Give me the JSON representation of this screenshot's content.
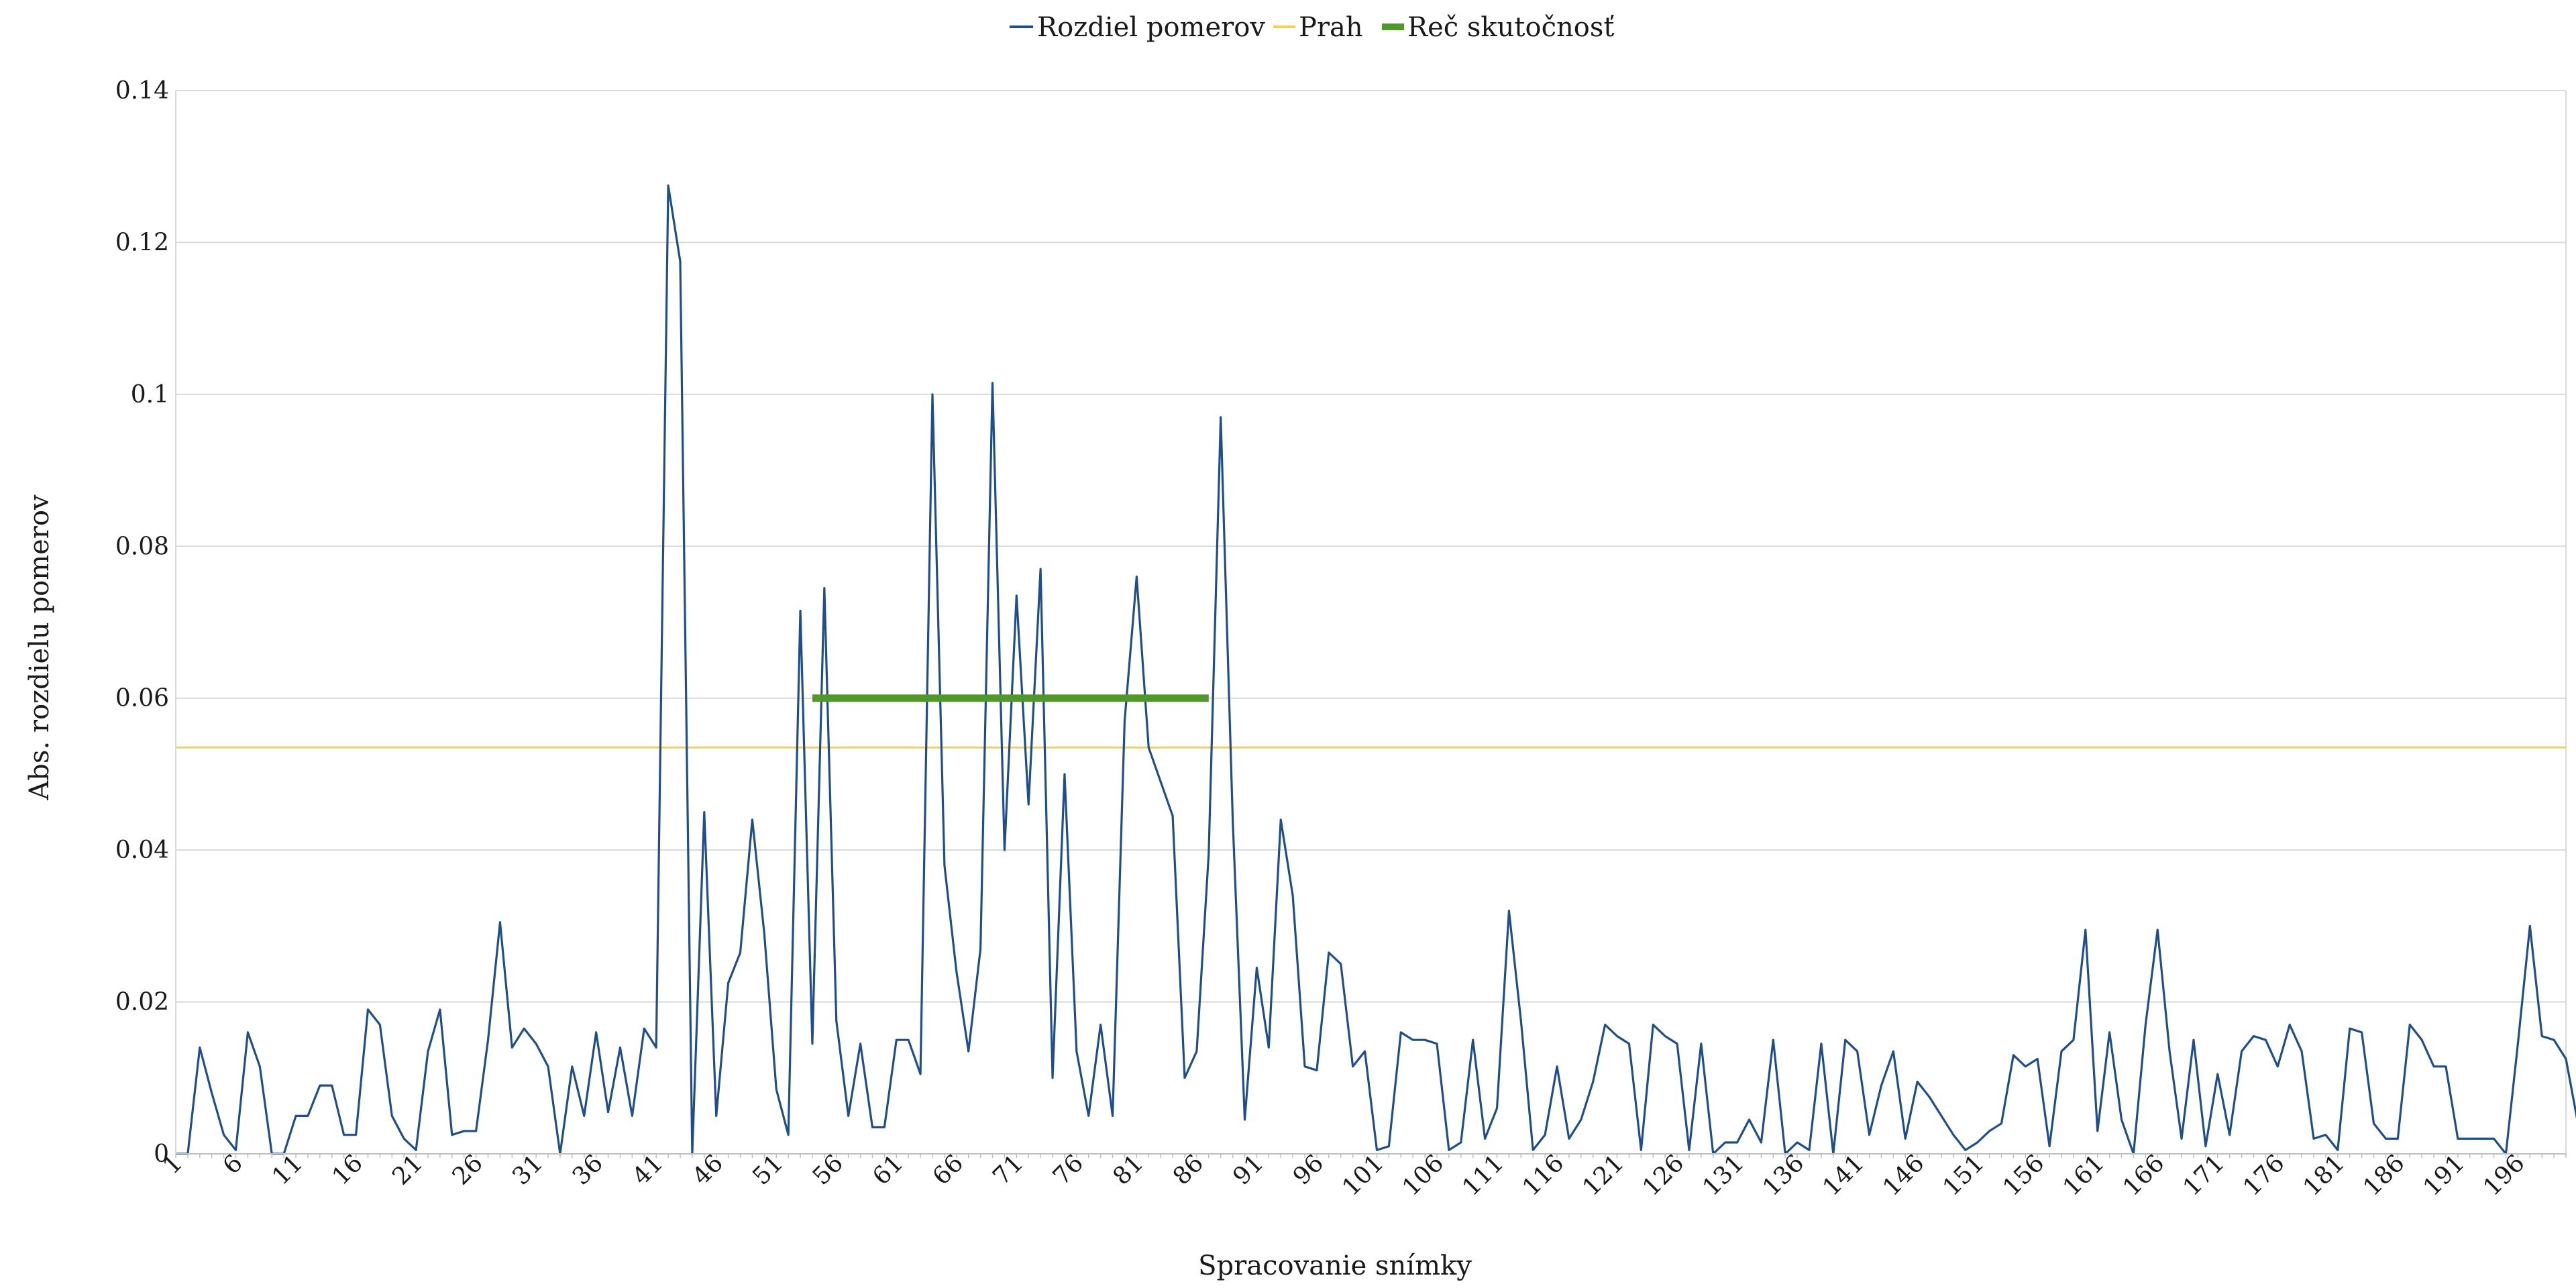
{
  "chart_data": {
    "type": "line",
    "title": "",
    "xlabel": "Spracovanie snímky",
    "ylabel": "Abs. rozdielu pomerov",
    "xlim": [
      1,
      200
    ],
    "ylim": [
      0,
      0.14
    ],
    "grid": true,
    "legend_position": "top-center",
    "x_tick_labels": [
      "1",
      "6",
      "11",
      "16",
      "21",
      "26",
      "31",
      "36",
      "41",
      "46",
      "51",
      "56",
      "61",
      "66",
      "71",
      "76",
      "81",
      "86",
      "91",
      "96",
      "101",
      "106",
      "111",
      "116",
      "121",
      "126",
      "131",
      "136",
      "141",
      "146",
      "151",
      "156",
      "161",
      "166",
      "171",
      "176",
      "181",
      "186",
      "191",
      "196"
    ],
    "y_tick_labels": [
      "0",
      "0.02",
      "0.04",
      "0.06",
      "0.08",
      "0.1",
      "0.12",
      "0.14"
    ],
    "y_ticks": [
      0,
      0.02,
      0.04,
      0.06,
      0.08,
      0.1,
      0.12,
      0.14
    ],
    "series": [
      {
        "name": "Rozdiel pomerov",
        "color": "#1f4e8c",
        "x_start": 1,
        "values": [
          0,
          0,
          0.014,
          0.008,
          0.0025,
          0.0005,
          0.016,
          0.0115,
          0,
          0,
          0.005,
          0.005,
          0.009,
          0.009,
          0.0025,
          0.0025,
          0.019,
          0.017,
          0.005,
          0.002,
          0.0005,
          0.0135,
          0.019,
          0.0025,
          0.003,
          0.003,
          0.015,
          0.0305,
          0.014,
          0.0165,
          0.0145,
          0.0115,
          0,
          0.0115,
          0.005,
          0.016,
          0.0055,
          0.014,
          0.005,
          0.0165,
          0.014,
          0.1275,
          0.1175,
          0,
          0.045,
          0.005,
          0.0225,
          0.0265,
          0.044,
          0.029,
          0.0085,
          0.0025,
          0.0715,
          0.0145,
          0.0745,
          0.0175,
          0.005,
          0.0145,
          0.0035,
          0.0035,
          0.015,
          0.015,
          0.0105,
          0.1,
          0.038,
          0.024,
          0.0135,
          0.027,
          0.1015,
          0.04,
          0.0735,
          0.046,
          0.077,
          0.01,
          0.05,
          0.0135,
          0.005,
          0.017,
          0.005,
          0.057,
          0.076,
          0.0535,
          0.049,
          0.0445,
          0.01,
          0.0135,
          0.0395,
          0.097,
          0.044,
          0.0045,
          0.0245,
          0.014,
          0.044,
          0.034,
          0.0115,
          0.011,
          0.0265,
          0.025,
          0.0115,
          0.0135,
          0.0005,
          0.001,
          0.016,
          0.015,
          0.015,
          0.0145,
          0.0005,
          0.0015,
          0.015,
          0.002,
          0.006,
          0.032,
          0.0175,
          0.0005,
          0.0025,
          0.0115,
          0.002,
          0.0045,
          0.0095,
          0.017,
          0.0155,
          0.0145,
          0.0005,
          0.017,
          0.0155,
          0.0145,
          0.0005,
          0.0145,
          0,
          0.0015,
          0.0015,
          0.0045,
          0.0015,
          0.015,
          0,
          0.0015,
          0.0005,
          0.0145,
          0,
          0.015,
          0.0135,
          0.0025,
          0.009,
          0.0135,
          0.002,
          0.0095,
          0.0075,
          0.005,
          0.0025,
          0.0005,
          0.0015,
          0.003,
          0.004,
          0.013,
          0.0115,
          0.0125,
          0.001,
          0.0135,
          0.015,
          0.0295,
          0.003,
          0.016,
          0.0045,
          0,
          0.017,
          0.0295,
          0.0135,
          0.002,
          0.015,
          0.001,
          0.0105,
          0.0025,
          0.0135,
          0.0155,
          0.015,
          0.0115,
          0.017,
          0.0135,
          0.002,
          0.0025,
          0.0005,
          0.0165,
          0.016,
          0.004,
          0.002,
          0.002,
          0.017,
          0.015,
          0.0115,
          0.0115,
          0.002,
          0.002,
          0.002,
          0.002,
          0,
          0.0145,
          0.03,
          0.0155,
          0.015,
          0.0125,
          0.004
        ]
      },
      {
        "name": "Prah",
        "color": "#f2d255",
        "constant": 0.0535
      },
      {
        "name": "Reč skutočnosť",
        "color": "#4f9a27",
        "constant": 0.06,
        "x_range": [
          54,
          87
        ]
      }
    ]
  }
}
